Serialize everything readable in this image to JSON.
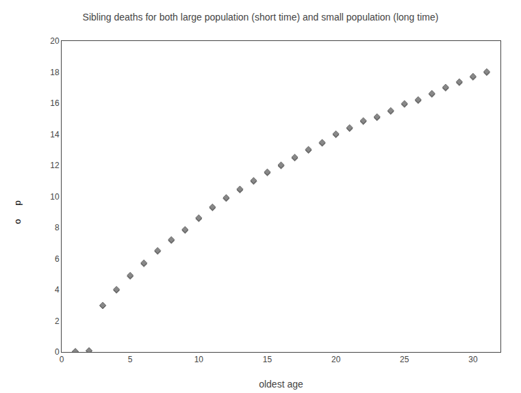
{
  "chart_data": {
    "type": "scatter",
    "title": "Sibling deaths for both large population (short time) and small population (long time)",
    "x_label": "oldest age",
    "x": [
      1,
      2,
      3,
      4,
      5,
      6,
      7,
      8,
      9,
      10,
      11,
      12,
      13,
      14,
      15,
      16,
      17,
      18,
      19,
      20,
      21,
      22,
      23,
      24,
      25,
      26,
      27,
      28,
      29,
      30,
      31
    ],
    "series": [
      {
        "color": "#888888",
        "values": [
          0.02,
          0.07,
          2.97,
          3.97,
          4.87,
          5.67,
          6.47,
          7.17,
          7.82,
          8.57,
          9.27,
          9.87,
          10.42,
          10.97,
          11.52,
          11.97,
          12.47,
          12.97,
          13.42,
          13.97,
          14.37,
          14.82,
          15.07,
          15.47,
          15.92,
          16.17,
          16.57,
          16.97,
          17.32,
          17.67,
          17.97
        ]
      },
      {
        "color": "#888888",
        "values": [
          0.04,
          0.09,
          3.01,
          4.03,
          4.93,
          5.73,
          6.53,
          7.23,
          7.88,
          8.63,
          9.33,
          9.93,
          10.48,
          11.03,
          11.58,
          12.03,
          12.53,
          13.03,
          13.48,
          14.03,
          14.43,
          14.88,
          15.13,
          15.53,
          15.98,
          16.23,
          16.63,
          17.03,
          17.38,
          17.73,
          18.03
        ]
      }
    ],
    "xlim": [
      0,
      32
    ],
    "ylim": [
      0,
      20
    ],
    "xticks": [
      0,
      5,
      10,
      15,
      20,
      25,
      30
    ],
    "yticks": [
      0,
      2,
      4,
      6,
      8,
      10,
      12,
      14,
      16,
      18,
      20
    ],
    "grid": false,
    "marker": "diamond",
    "annotations": [
      "p",
      "o"
    ]
  }
}
